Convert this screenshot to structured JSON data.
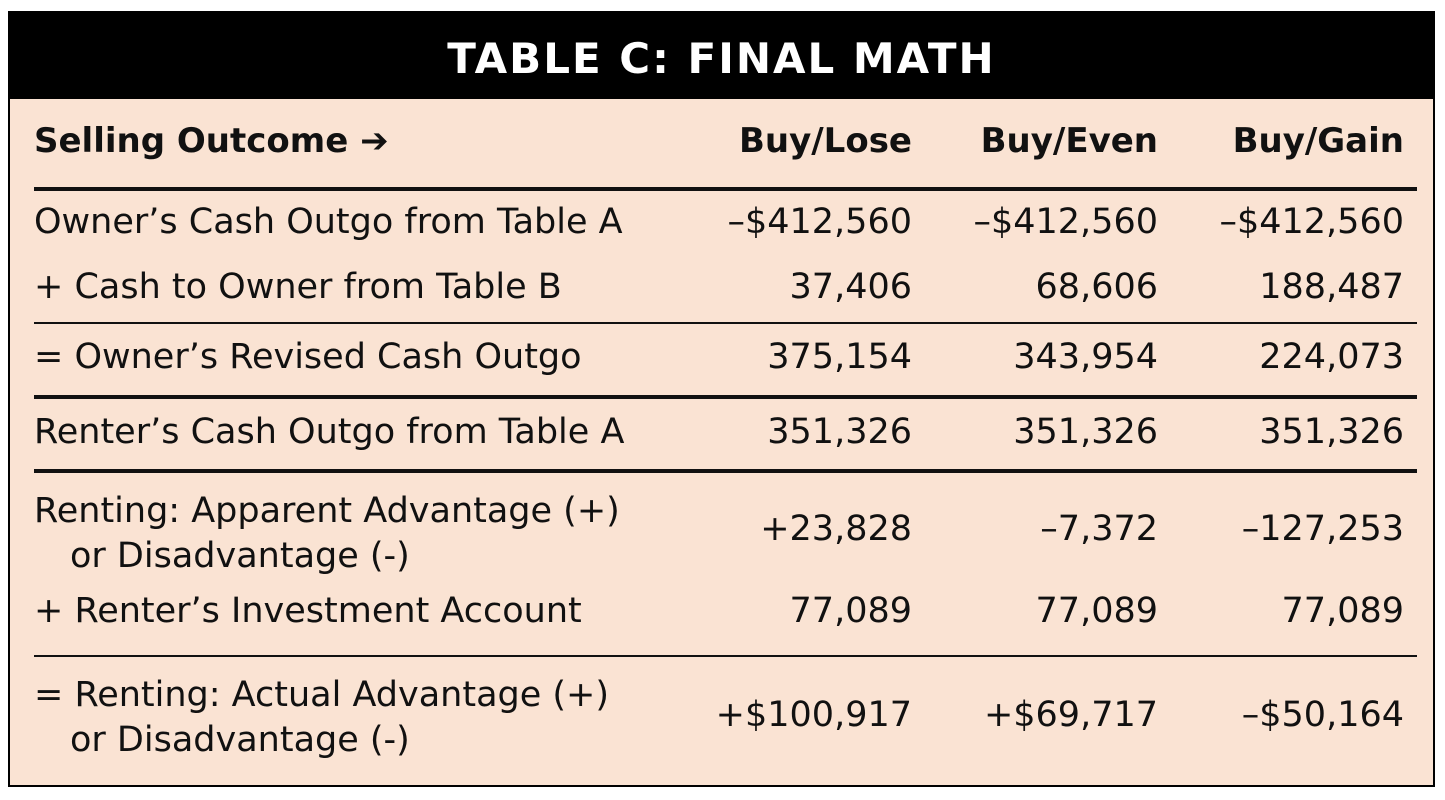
{
  "title": "TABLE C: FINAL MATH",
  "colors": {
    "background": "#fae3d3",
    "title_bar": "#000000",
    "title_text": "#ffffff"
  },
  "header": {
    "label": "Selling Outcome ➔",
    "columns": [
      "Buy/Lose",
      "Buy/Even",
      "Buy/Gain"
    ]
  },
  "rows": [
    {
      "label": "Owner’s Cash Outgo from Table A",
      "values": [
        "–$412,560",
        "–$412,560",
        "–$412,560"
      ]
    },
    {
      "label": "+ Cash to Owner from Table B",
      "values": [
        "37,406",
        "68,606",
        "188,487"
      ]
    },
    {
      "label": "= Owner’s Revised Cash Outgo",
      "values": [
        "375,154",
        "343,954",
        "224,073"
      ]
    },
    {
      "label": "Renter’s Cash Outgo from Table A",
      "values": [
        "351,326",
        "351,326",
        "351,326"
      ]
    },
    {
      "label_line1": "Renting: Apparent Advantage (+)",
      "label_line2": "or Disadvantage (-)",
      "values": [
        "+23,828",
        "–7,372",
        "–127,253"
      ]
    },
    {
      "label": "+ Renter’s Investment Account",
      "values": [
        "77,089",
        "77,089",
        "77,089"
      ]
    },
    {
      "label_line1": "= Renting: Actual Advantage (+)",
      "label_line2": "or Disadvantage (-)",
      "values": [
        "+$100,917",
        "+$69,717",
        "–$50,164"
      ]
    }
  ]
}
